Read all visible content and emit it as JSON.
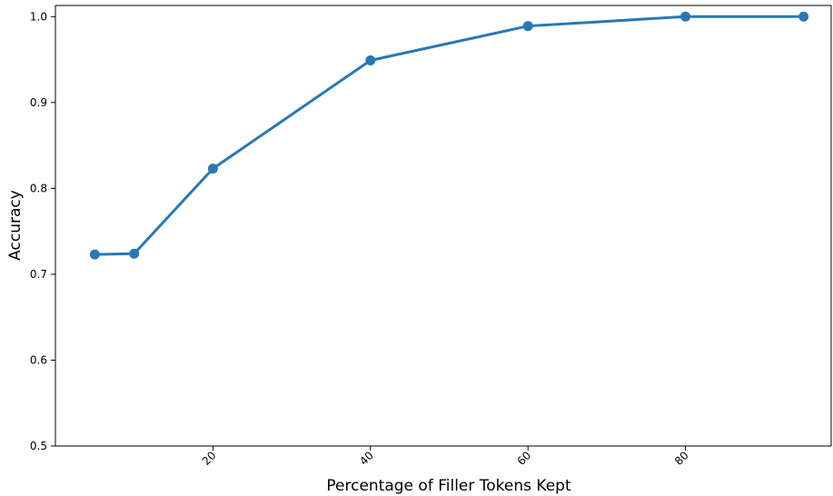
{
  "chart_data": {
    "type": "line",
    "title": "",
    "xlabel": "Percentage of Filler Tokens Kept",
    "ylabel": "Accuracy",
    "xlim": [
      0,
      98.5
    ],
    "ylim": [
      0.5,
      1.013
    ],
    "xticks": [
      20,
      40,
      60,
      80
    ],
    "xtick_labels": [
      "20",
      "40",
      "60",
      "80"
    ],
    "xtick_rotation": 45,
    "yticks": [
      0.5,
      0.6,
      0.7,
      0.8,
      0.9,
      1.0
    ],
    "ytick_labels": [
      "0.5",
      "0.6",
      "0.7",
      "0.8",
      "0.9",
      "1.0"
    ],
    "grid": false,
    "legend": "none",
    "series": [
      {
        "color": "#2878b5",
        "marker": "circle",
        "x": [
          5,
          10,
          20,
          40,
          60,
          80,
          95
        ],
        "y": [
          0.723,
          0.724,
          0.823,
          0.949,
          0.989,
          1.0,
          1.0
        ]
      }
    ]
  }
}
